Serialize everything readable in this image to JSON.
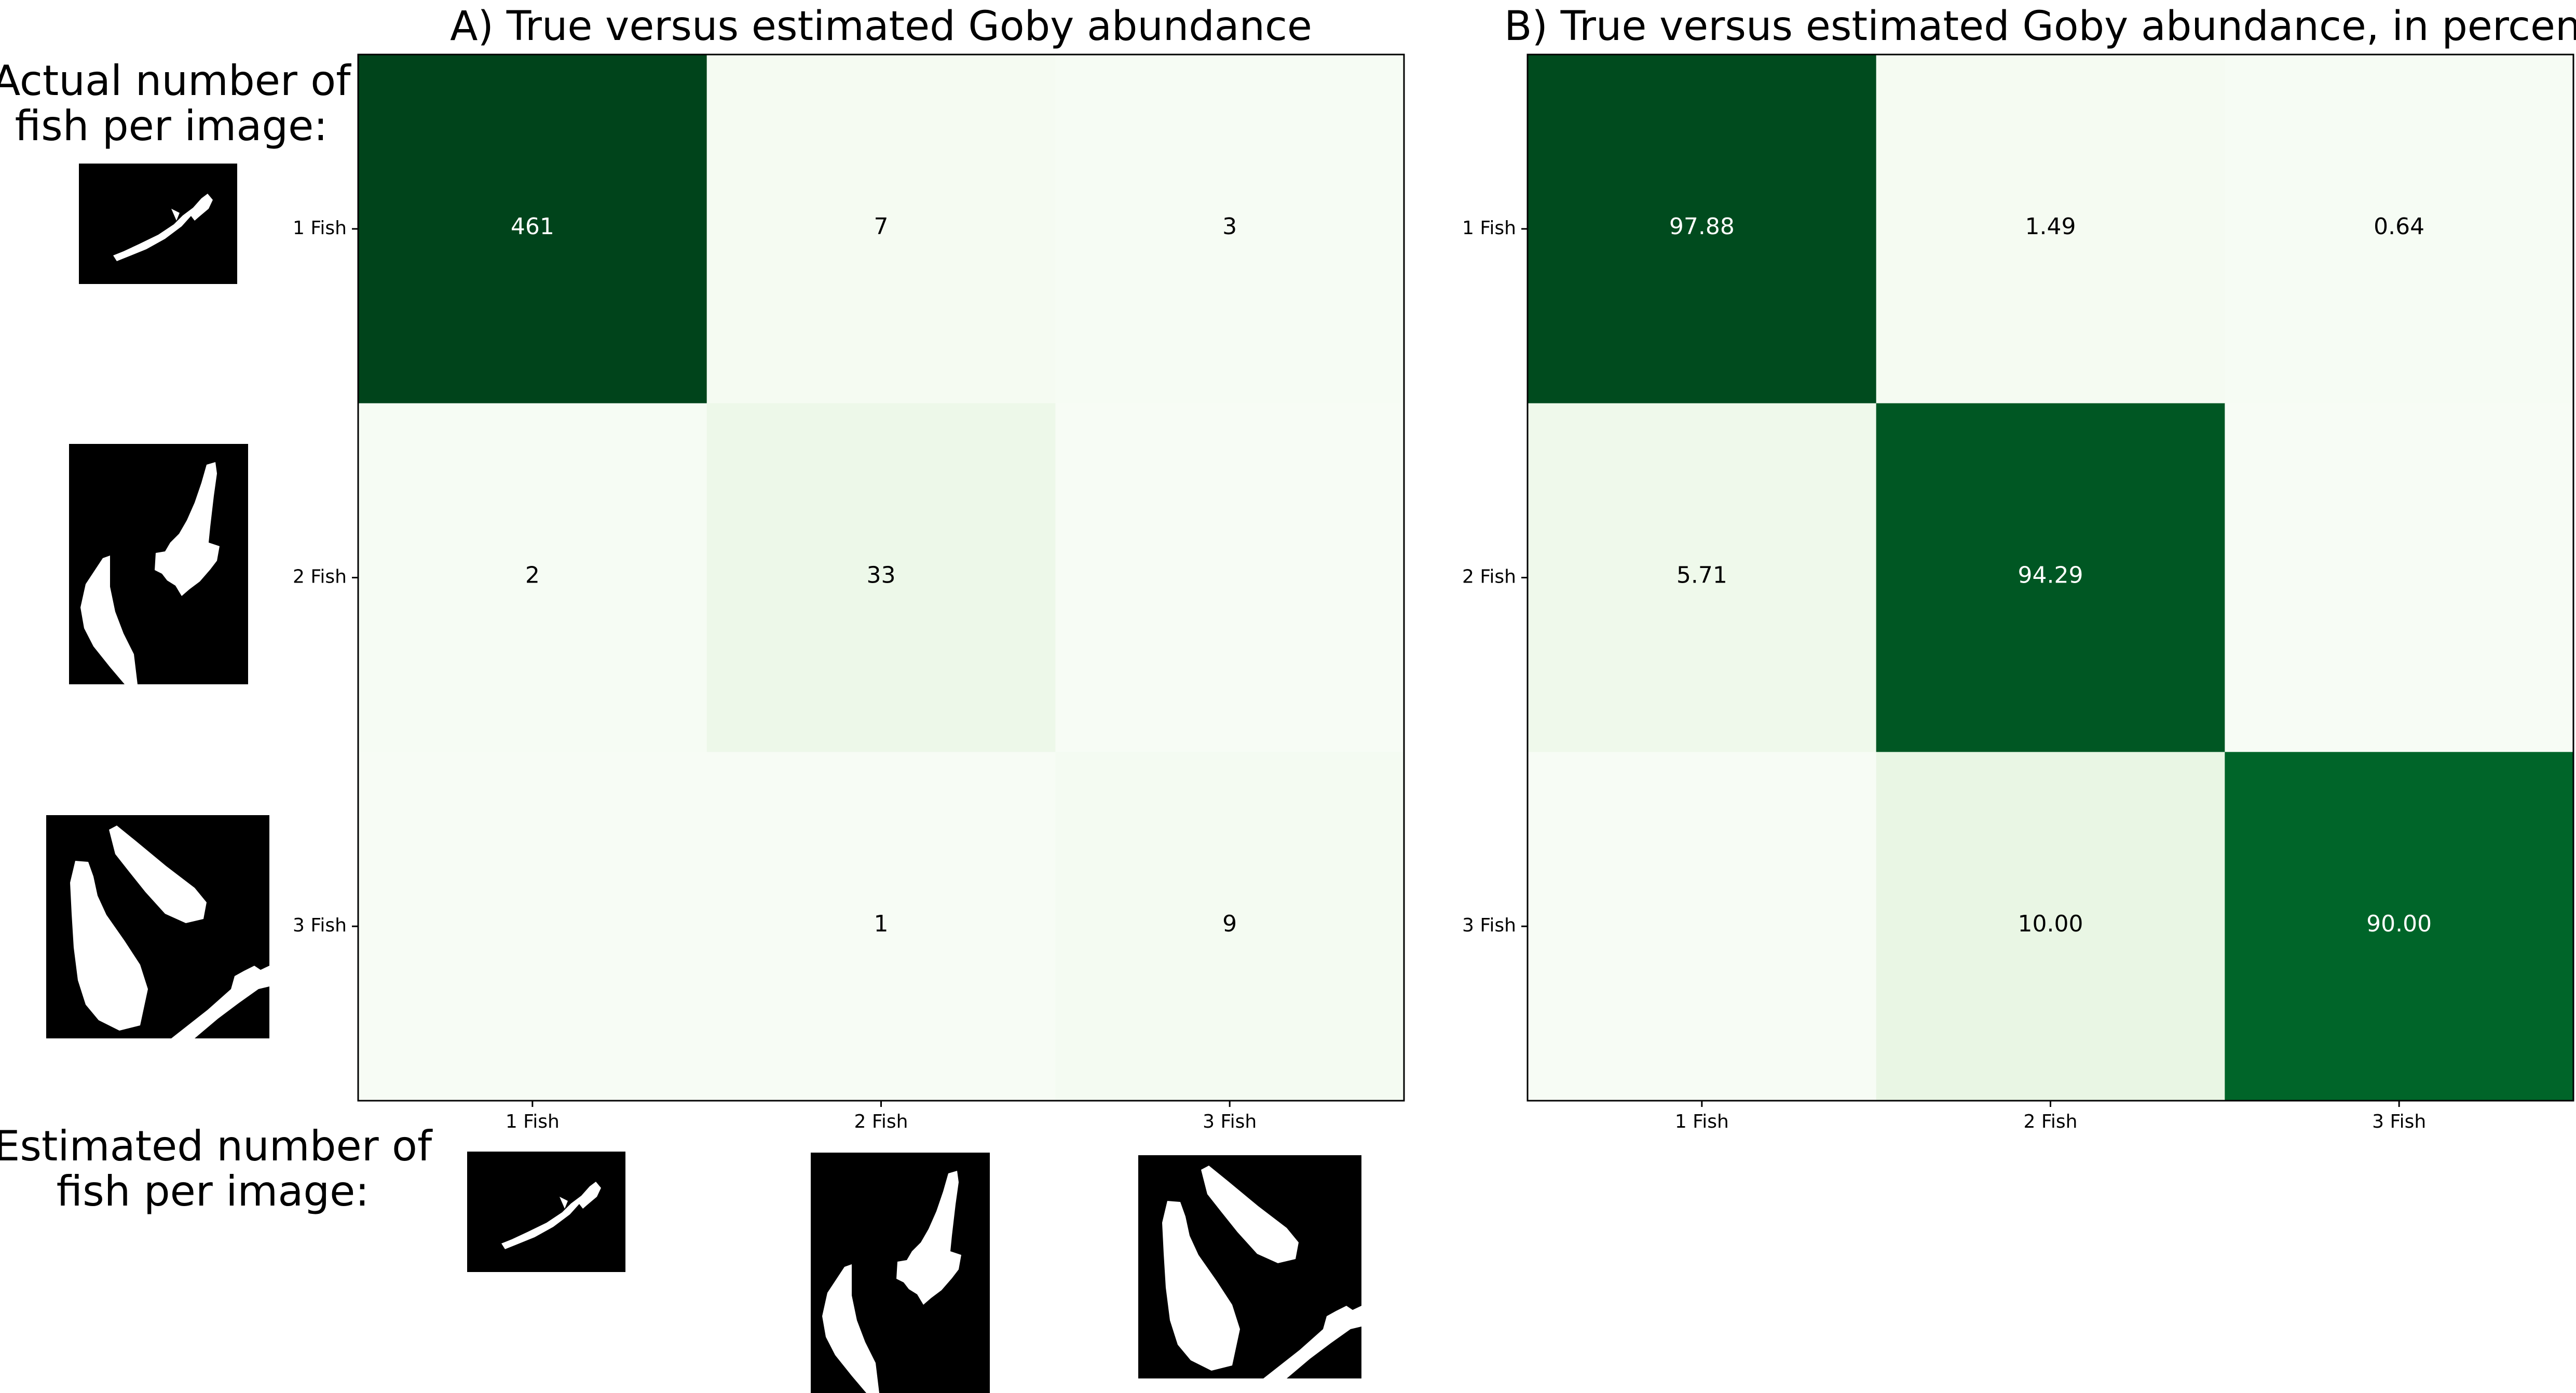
{
  "side_labels": {
    "actual": [
      "Actual number of",
      "fish per image:"
    ],
    "estimated": [
      "Estimated number of",
      "fish per image:"
    ]
  },
  "colors": {
    "colormap": "Greens",
    "frame": "#000000",
    "background": "#ffffff",
    "thumb_bg": "#000000",
    "thumb_fish": "#ffffff"
  },
  "thumbnails": {
    "actual": [
      "1-fish-thumbnail",
      "2-fish-thumbnail",
      "3-fish-thumbnail"
    ],
    "estimated": [
      "1-fish-thumbnail",
      "2-fish-thumbnail",
      "3-fish-thumbnail"
    ]
  },
  "chart_data": [
    {
      "type": "heatmap",
      "title": "A) True versus estimated Goby abundance",
      "xlabel": "",
      "ylabel": "",
      "x_categories": [
        "1 Fish",
        "2 Fish",
        "3 Fish"
      ],
      "y_categories": [
        "1 Fish",
        "2 Fish",
        "3 Fish"
      ],
      "values": [
        [
          461,
          7,
          3
        ],
        [
          2,
          33,
          0
        ],
        [
          0,
          1,
          9
        ]
      ],
      "cell_labels": [
        [
          "461",
          "7",
          "3"
        ],
        [
          "2",
          "33",
          ""
        ],
        [
          "",
          "1",
          "9"
        ]
      ],
      "vmax": 461,
      "colormap": "Greens"
    },
    {
      "type": "heatmap",
      "title": "B) True versus estimated Goby abundance, in percent",
      "xlabel": "",
      "ylabel": "",
      "x_categories": [
        "1 Fish",
        "2 Fish",
        "3 Fish"
      ],
      "y_categories": [
        "1 Fish",
        "2 Fish",
        "3 Fish"
      ],
      "values": [
        [
          97.88,
          1.49,
          0.64
        ],
        [
          5.71,
          94.29,
          0
        ],
        [
          0,
          10.0,
          90.0
        ]
      ],
      "cell_labels": [
        [
          "97.88",
          "1.49",
          "0.64"
        ],
        [
          "5.71",
          "94.29",
          ""
        ],
        [
          "",
          "10.00",
          "90.00"
        ]
      ],
      "vmax": 100,
      "colormap": "Greens"
    }
  ]
}
